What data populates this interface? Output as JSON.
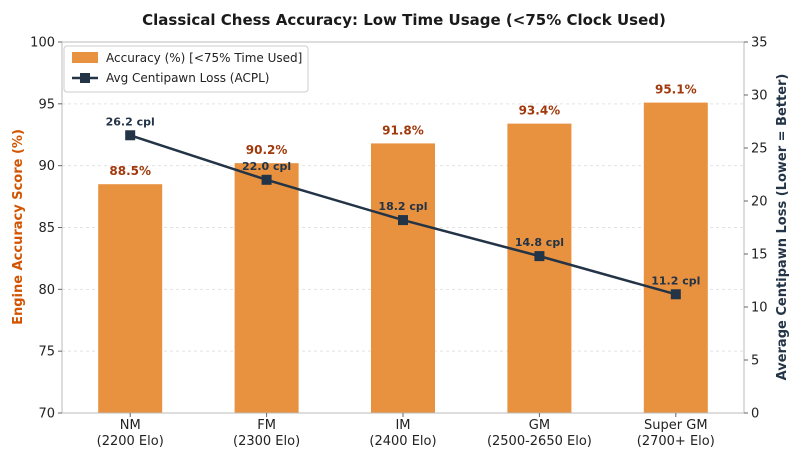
{
  "chart_data": {
    "type": "bar",
    "title": "Classical Chess Accuracy: Low Time Usage (<75% Clock Used)",
    "categories": [
      [
        "NM",
        "(2200 Elo)"
      ],
      [
        "FM",
        "(2300 Elo)"
      ],
      [
        "IM",
        "(2400 Elo)"
      ],
      [
        "GM",
        "(2500-2650 Elo)"
      ],
      [
        "Super GM",
        "(2700+ Elo)"
      ]
    ],
    "ylabel": "Engine Accuracy Score (%)",
    "y2label": "Average Centipawn Loss (Lower = Better)",
    "ylim": [
      70,
      100
    ],
    "y2lim": [
      0,
      35
    ],
    "yticks": [
      70,
      75,
      80,
      85,
      90,
      95,
      100
    ],
    "y2ticks": [
      0,
      5,
      10,
      15,
      20,
      25,
      30,
      35
    ],
    "legend_position": "top-left",
    "grid": true,
    "series": [
      {
        "name": "Accuracy (%) [<75% Time Used]",
        "type": "bar",
        "axis": "left",
        "color": "#e8913f",
        "values": [
          88.5,
          90.2,
          91.8,
          93.4,
          95.1
        ],
        "labels": [
          "88.5%",
          "90.2%",
          "91.8%",
          "93.4%",
          "95.1%"
        ]
      },
      {
        "name": "Avg Centipawn Loss (ACPL)",
        "type": "line",
        "axis": "right",
        "color": "#233447",
        "values": [
          26.2,
          22.0,
          18.2,
          14.8,
          11.2
        ],
        "labels": [
          "26.2 cpl",
          "22.0 cpl",
          "18.2 cpl",
          "14.8 cpl",
          "11.2 cpl"
        ]
      }
    ]
  }
}
